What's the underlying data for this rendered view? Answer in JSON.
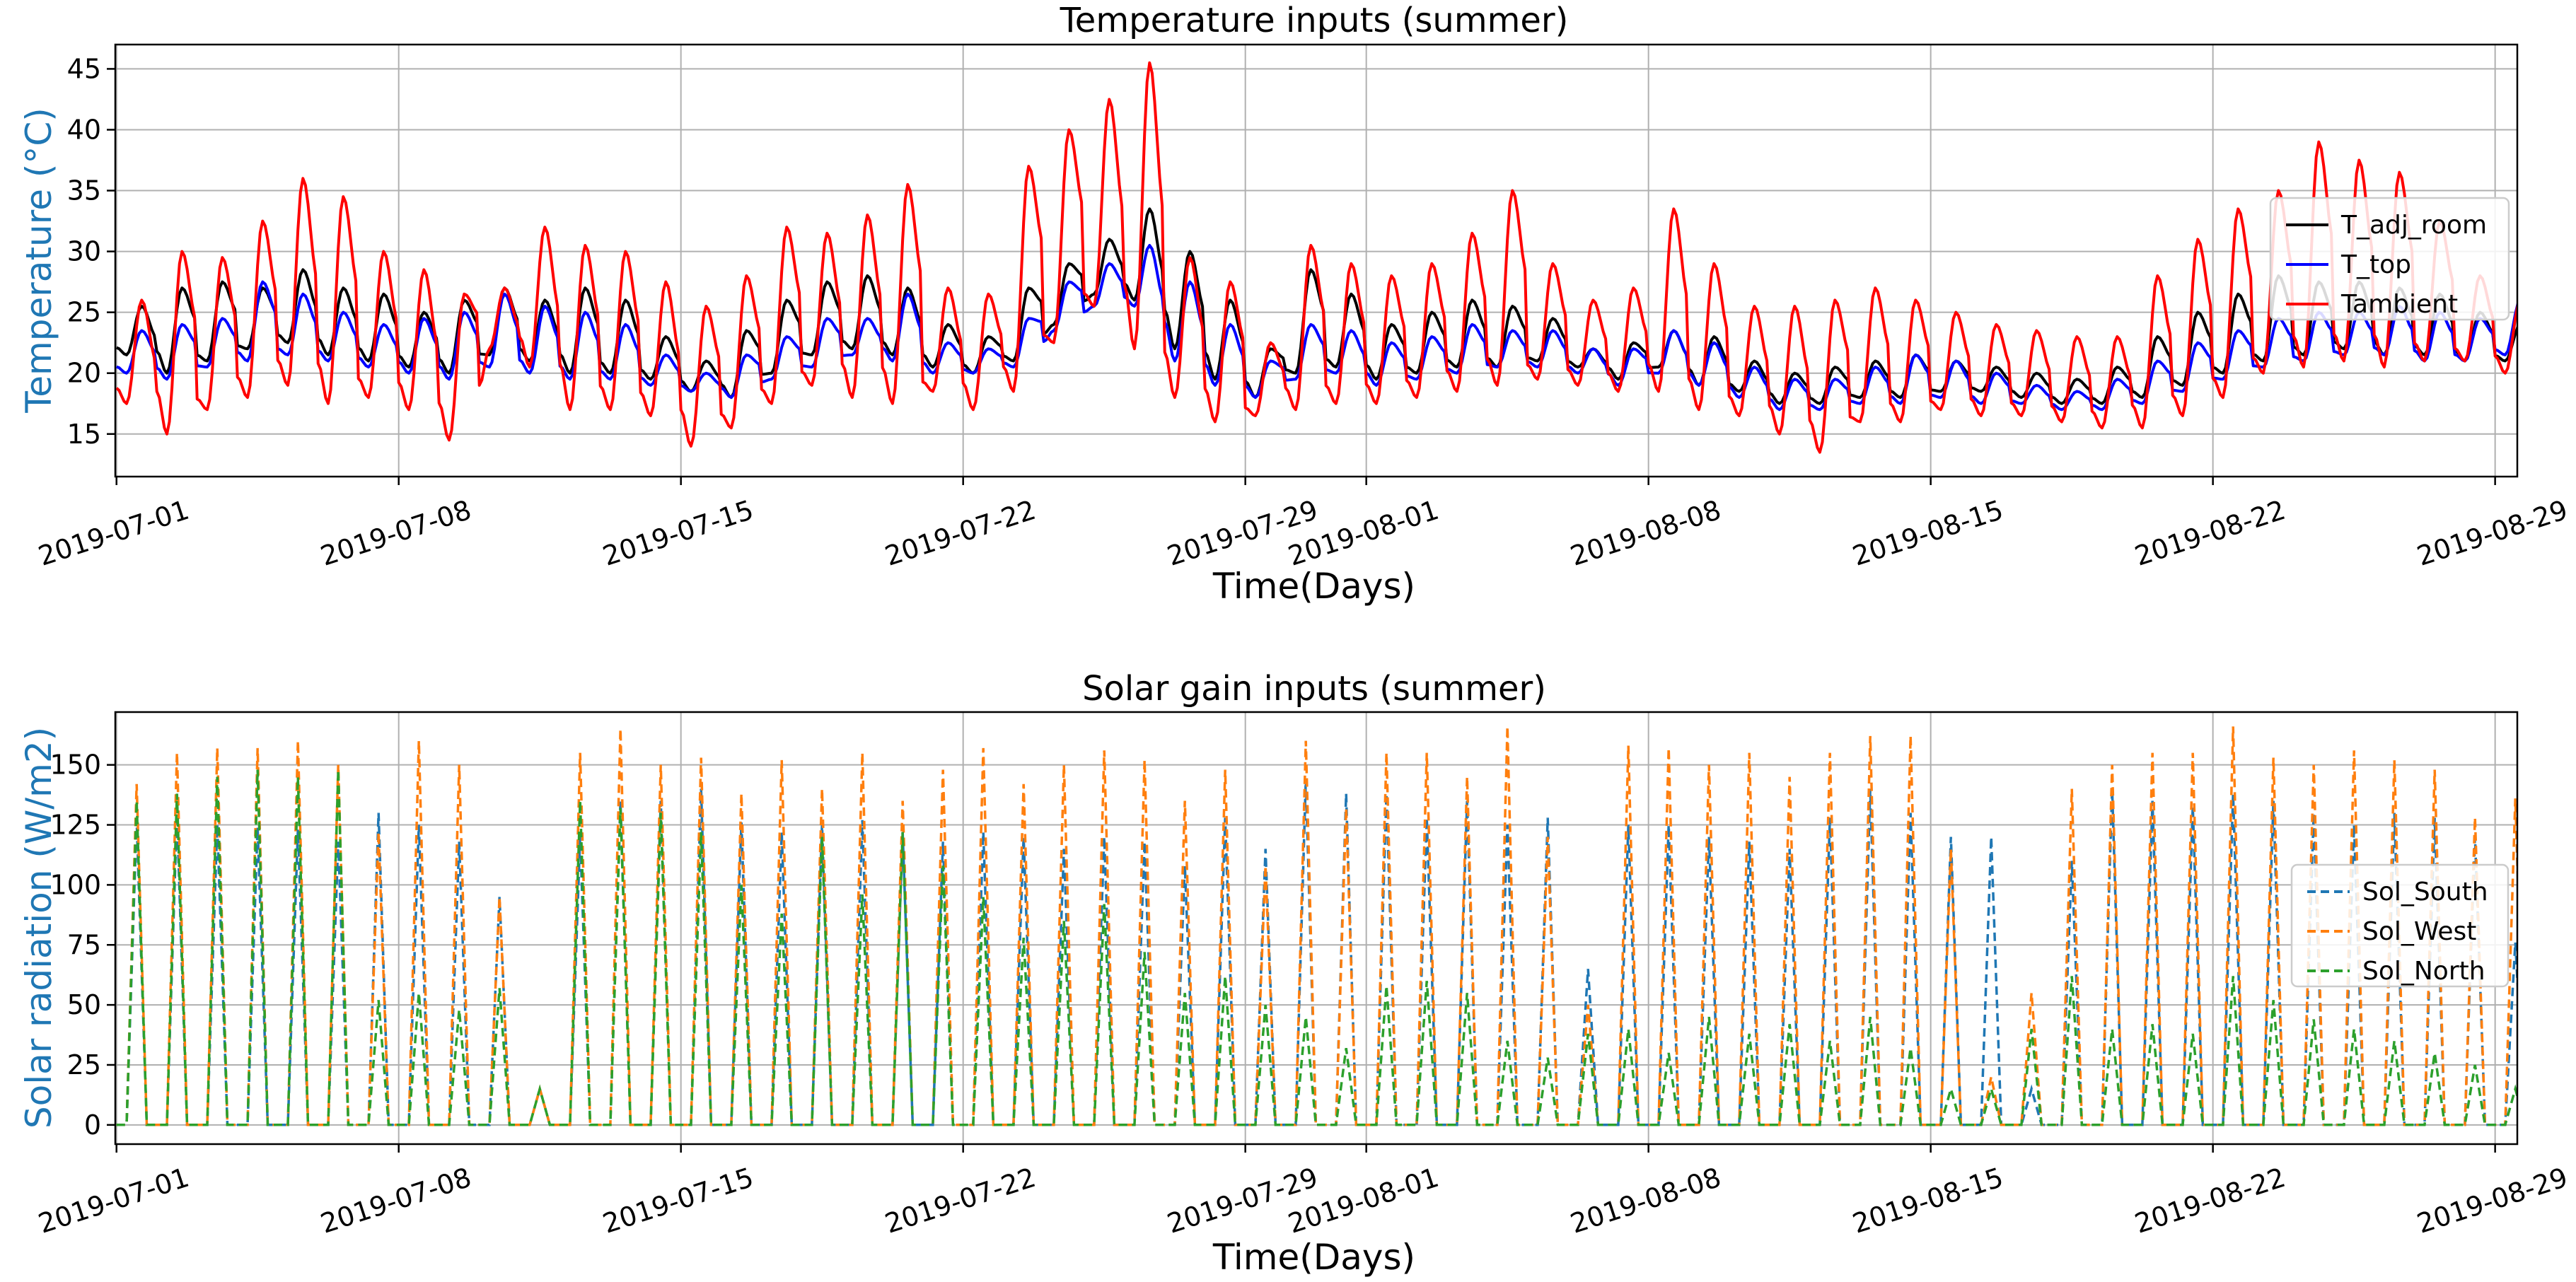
{
  "chart_data": [
    {
      "type": "line",
      "title": "Temperature inputs (summer)",
      "xlabel": "Time(Days)",
      "ylabel": "Temperature (°C)",
      "ylabel_color": "#1f77b4",
      "xlim": [
        "2019-07-01",
        "2019-08-29"
      ],
      "ylim": [
        11.5,
        47
      ],
      "yticks": [
        15,
        20,
        25,
        30,
        35,
        40,
        45
      ],
      "xticks": [
        "2019-07-01",
        "2019-07-08",
        "2019-07-15",
        "2019-07-22",
        "2019-07-29",
        "2019-08-01",
        "2019-08-08",
        "2019-08-15",
        "2019-08-22",
        "2019-08-29"
      ],
      "grid": true,
      "legend_position": "right",
      "series": [
        {
          "name": "T_adj_room",
          "color": "#000000",
          "style": "solid",
          "daily_min": [
            21.5,
            20.0,
            21.0,
            22.0,
            22.5,
            21.5,
            21.0,
            20.5,
            20.0,
            21.5,
            21.0,
            20.0,
            20.0,
            19.5,
            18.5,
            18.0,
            20.0,
            21.5,
            22.0,
            21.5,
            20.5,
            20.0,
            21.0,
            24.0,
            26.5,
            26.0,
            22.0,
            19.5,
            18.0,
            20.0,
            20.5,
            19.5,
            20.0,
            20.5,
            20.5,
            21.0,
            20.5,
            19.5,
            20.5,
            19.0,
            18.5,
            17.5,
            17.5,
            18.0,
            18.0,
            18.5,
            18.5,
            18.0,
            17.5,
            17.5,
            18.0,
            19.0,
            20.0,
            21.0,
            21.5,
            22.0,
            21.5,
            21.5,
            21.0,
            21.0
          ],
          "daily_max": [
            25.5,
            27.0,
            27.5,
            27.0,
            28.5,
            27.0,
            26.5,
            25.0,
            26.0,
            27.0,
            26.0,
            27.0,
            26.0,
            23.0,
            21.0,
            23.5,
            26.0,
            27.5,
            28.0,
            27.0,
            24.0,
            23.0,
            27.0,
            29.0,
            31.0,
            33.5,
            30.0,
            26.0,
            22.0,
            28.5,
            26.5,
            24.0,
            25.0,
            26.0,
            25.5,
            24.5,
            22.0,
            22.5,
            23.5,
            23.0,
            21.0,
            20.0,
            20.5,
            21.0,
            21.5,
            21.0,
            20.5,
            20.0,
            19.5,
            20.5,
            23.0,
            25.0,
            26.5,
            28.0,
            27.5,
            27.5,
            27.0,
            26.5,
            25.0,
            24.0
          ]
        },
        {
          "name": "T_top",
          "color": "#0000ff",
          "style": "solid",
          "daily_min": [
            20.0,
            19.5,
            20.5,
            21.0,
            21.5,
            21.0,
            20.5,
            20.0,
            19.5,
            20.5,
            20.0,
            19.5,
            19.5,
            19.0,
            18.5,
            18.0,
            19.5,
            20.5,
            21.5,
            21.0,
            20.0,
            20.0,
            20.5,
            23.5,
            25.5,
            25.5,
            21.0,
            19.0,
            18.0,
            19.5,
            20.0,
            19.0,
            19.5,
            20.0,
            20.5,
            20.5,
            20.0,
            19.0,
            20.0,
            19.0,
            18.0,
            17.0,
            17.0,
            17.5,
            17.5,
            18.0,
            17.5,
            17.5,
            17.0,
            17.0,
            17.5,
            18.5,
            19.5,
            20.5,
            21.0,
            21.5,
            21.5,
            21.0,
            21.0,
            21.5
          ],
          "daily_max": [
            23.5,
            24.0,
            24.5,
            27.5,
            26.5,
            25.0,
            24.0,
            24.5,
            25.0,
            26.5,
            25.5,
            25.0,
            24.0,
            21.5,
            20.0,
            21.5,
            23.0,
            24.5,
            24.5,
            26.5,
            22.5,
            22.0,
            24.5,
            27.5,
            29.0,
            30.5,
            27.5,
            24.0,
            21.0,
            24.0,
            23.5,
            22.5,
            23.0,
            24.0,
            23.5,
            23.5,
            22.0,
            22.0,
            23.5,
            22.5,
            20.5,
            19.5,
            19.5,
            20.5,
            21.5,
            21.0,
            20.0,
            19.0,
            18.5,
            19.5,
            21.0,
            22.5,
            23.5,
            24.5,
            25.0,
            25.0,
            25.5,
            25.0,
            24.5,
            26.0
          ]
        },
        {
          "name": "Tambient",
          "color": "#ff0000",
          "style": "solid",
          "daily_min": [
            17.5,
            15.0,
            17.0,
            18.0,
            19.0,
            17.5,
            18.0,
            17.0,
            14.5,
            22.0,
            20.5,
            17.0,
            17.0,
            16.5,
            14.0,
            15.5,
            17.5,
            19.0,
            18.0,
            17.5,
            18.5,
            17.0,
            18.5,
            22.5,
            25.5,
            22.0,
            18.0,
            16.0,
            16.5,
            17.0,
            17.5,
            17.5,
            18.0,
            18.5,
            19.0,
            19.5,
            19.0,
            18.5,
            18.5,
            17.0,
            16.5,
            15.0,
            13.5,
            16.0,
            16.0,
            17.0,
            16.5,
            16.5,
            16.0,
            15.5,
            15.5,
            16.5,
            18.0,
            20.0,
            20.5,
            21.0,
            20.5,
            21.0,
            21.0,
            20.0
          ],
          "daily_max": [
            26.0,
            30.0,
            29.5,
            32.5,
            36.0,
            34.5,
            30.0,
            28.5,
            26.5,
            27.0,
            32.0,
            30.5,
            30.0,
            27.5,
            25.5,
            28.0,
            32.0,
            31.5,
            33.0,
            35.5,
            27.0,
            26.5,
            37.0,
            40.0,
            42.5,
            45.5,
            29.5,
            27.5,
            22.5,
            30.5,
            29.0,
            28.0,
            29.0,
            31.5,
            35.0,
            29.0,
            26.0,
            27.0,
            33.5,
            29.0,
            25.5,
            25.5,
            26.0,
            27.0,
            26.0,
            25.0,
            24.0,
            23.5,
            23.0,
            23.0,
            28.0,
            31.0,
            33.5,
            35.0,
            39.0,
            37.5,
            36.5,
            32.5,
            28.0,
            26.0
          ]
        }
      ]
    },
    {
      "type": "line",
      "title": "Solar gain inputs (summer)",
      "xlabel": "Time(Days)",
      "ylabel": "Solar radiation (W/m2)",
      "ylabel_color": "#1f77b4",
      "xlim": [
        "2019-07-01",
        "2019-08-29"
      ],
      "ylim": [
        -8,
        172
      ],
      "yticks": [
        0,
        25,
        50,
        75,
        100,
        125,
        150
      ],
      "xticks": [
        "2019-07-01",
        "2019-07-08",
        "2019-07-15",
        "2019-07-22",
        "2019-07-29",
        "2019-08-01",
        "2019-08-08",
        "2019-08-15",
        "2019-08-22",
        "2019-08-29"
      ],
      "grid": true,
      "legend_position": "right",
      "series": [
        {
          "name": "Sol_South",
          "color": "#1f77b4",
          "style": "dashed",
          "daily_peak": [
            127,
            130,
            125,
            124,
            123,
            118,
            130,
            125,
            118,
            95,
            15,
            120,
            135,
            135,
            140,
            126,
            122,
            125,
            127,
            122,
            118,
            122,
            120,
            115,
            120,
            118,
            108,
            128,
            115,
            144,
            138,
            138,
            128,
            135,
            125,
            128,
            65,
            125,
            125,
            120,
            118,
            115,
            128,
            140,
            130,
            120,
            120,
            15,
            110,
            140,
            135,
            133,
            138,
            135,
            130,
            125,
            130,
            128,
            120,
            76
          ]
        },
        {
          "name": "Sol_West",
          "color": "#ff7f0e",
          "style": "dashed",
          "daily_peak": [
            142,
            155,
            157,
            157,
            160,
            150,
            122,
            160,
            150,
            95,
            15,
            155,
            165,
            150,
            153,
            138,
            152,
            140,
            155,
            135,
            148,
            157,
            142,
            150,
            156,
            152,
            135,
            148,
            108,
            160,
            132,
            155,
            155,
            145,
            166,
            120,
            50,
            158,
            157,
            150,
            155,
            145,
            155,
            162,
            162,
            115,
            20,
            55,
            140,
            150,
            155,
            155,
            166,
            153,
            150,
            156,
            152,
            148,
            128,
            136
          ]
        },
        {
          "name": "Sol_North",
          "color": "#2ca02c",
          "style": "dashed",
          "daily_peak": [
            135,
            138,
            145,
            148,
            145,
            148,
            52,
            55,
            48,
            57,
            15,
            135,
            132,
            130,
            122,
            100,
            88,
            120,
            96,
            122,
            108,
            95,
            78,
            85,
            92,
            72,
            55,
            62,
            50,
            45,
            32,
            58,
            60,
            55,
            35,
            28,
            38,
            40,
            30,
            45,
            38,
            42,
            35,
            45,
            32,
            15,
            15,
            40,
            62,
            40,
            42,
            38,
            62,
            52,
            44,
            40,
            35,
            30,
            25,
            15
          ]
        }
      ]
    }
  ]
}
